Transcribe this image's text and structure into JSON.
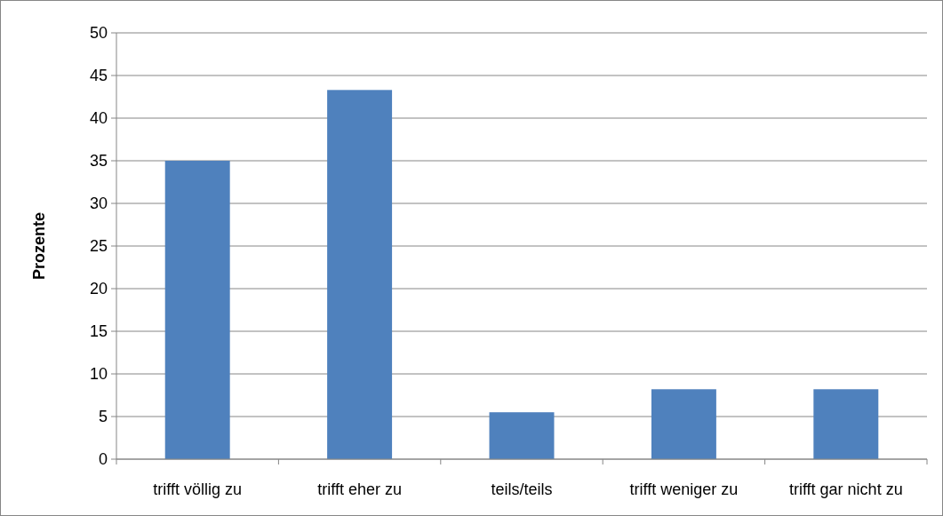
{
  "chart_data": {
    "type": "bar",
    "ylabel": "Prozente",
    "categories": [
      "trifft völlig zu",
      "trifft eher zu",
      "teils/teils",
      "trifft weniger zu",
      "trifft gar nicht zu"
    ],
    "values": [
      35,
      43.3,
      5.5,
      8.2,
      8.2
    ],
    "color": "#4f81bd",
    "ylim": [
      0,
      50
    ],
    "yticks": [
      0,
      5,
      10,
      15,
      20,
      25,
      30,
      35,
      40,
      45,
      50
    ],
    "grid": "y"
  }
}
